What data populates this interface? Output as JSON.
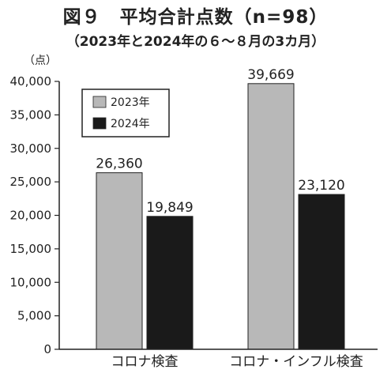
{
  "chart_data": {
    "type": "bar",
    "title": "図９　平均合計点数（n=98）",
    "subtitle": "（2023年と2024年の６～８月の3カ月）",
    "unit_label": "（点）",
    "categories": [
      "コロナ検査",
      "コロナ・インフル検査"
    ],
    "series": [
      {
        "name": "2023年",
        "values": [
          26360,
          39669
        ],
        "color": "#b8b8b8"
      },
      {
        "name": "2024年",
        "values": [
          19849,
          23120
        ],
        "color": "#1a1a1a"
      }
    ],
    "value_labels": [
      [
        "26,360",
        "39,669"
      ],
      [
        "19,849",
        "23,120"
      ]
    ],
    "ylim": [
      0,
      40000
    ],
    "yticks": [
      "0",
      "5,000",
      "10,000",
      "15,000",
      "20,000",
      "25,000",
      "30,000",
      "35,000",
      "40,000"
    ],
    "ytick_values": [
      0,
      5000,
      10000,
      15000,
      20000,
      25000,
      30000,
      35000,
      40000
    ],
    "legend_position": "top-left",
    "grid": false
  }
}
